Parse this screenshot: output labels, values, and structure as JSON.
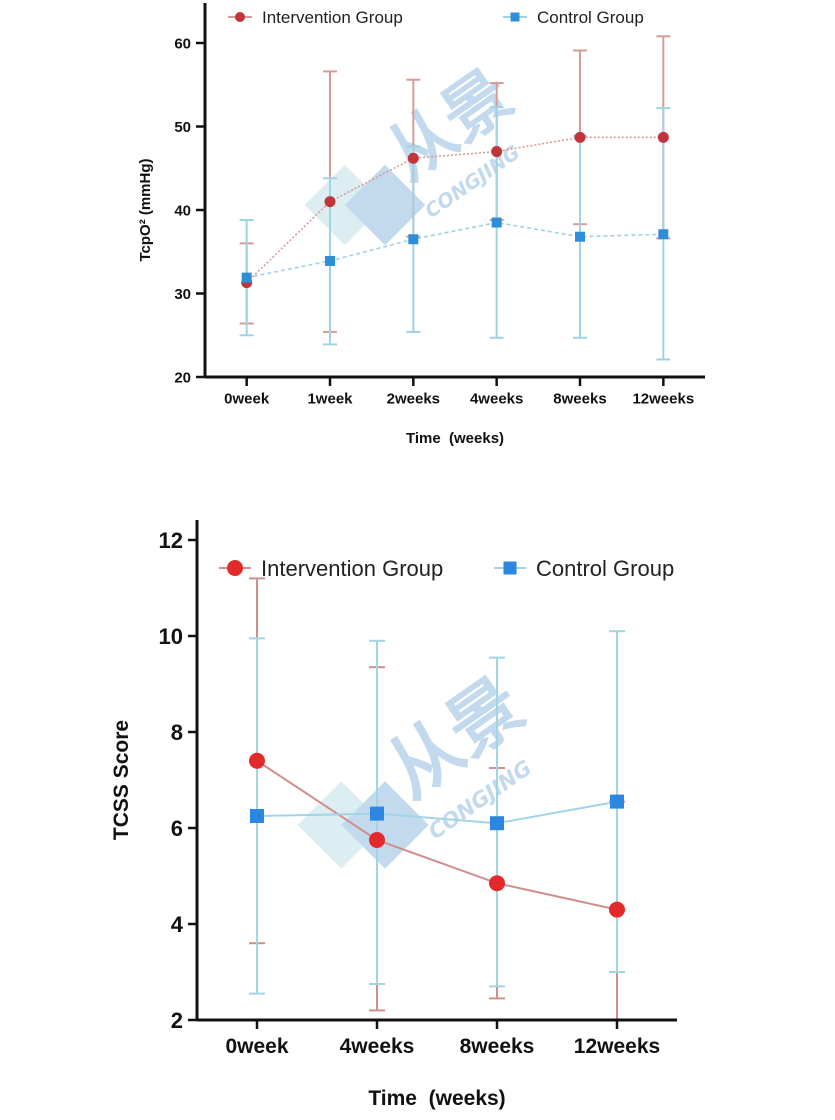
{
  "charts": [
    {
      "type": "line",
      "categories": [
        "0week",
        "1week",
        "2weeks",
        "4weeks",
        "8weeks",
        "12weeks"
      ],
      "xlabel": "Time  (weeks)",
      "ylabel": "TcpO² (mmHg)",
      "ylim": [
        20,
        60
      ],
      "yticks": [
        20,
        30,
        40,
        50,
        60
      ],
      "grid": false,
      "legend_position": "top",
      "colors": {
        "intervention": "#c0353a",
        "control": "#2e8fd8",
        "int_err": "#d89a98",
        "ctl_err": "#9fd3e3"
      },
      "series": [
        {
          "name": "Intervention Group",
          "marker": "circle",
          "values": [
            31.3,
            41.0,
            46.2,
            47.0,
            48.7,
            48.7
          ],
          "error_upper": [
            36.0,
            56.6,
            55.6,
            55.2,
            59.1,
            60.8
          ],
          "error_lower": [
            26.4,
            25.4,
            36.8,
            38.8,
            38.3,
            36.6
          ]
        },
        {
          "name": "Control Group",
          "marker": "square",
          "values": [
            31.9,
            33.9,
            36.5,
            38.5,
            36.8,
            37.1
          ],
          "error_upper": [
            38.8,
            43.8,
            47.6,
            52.3,
            48.9,
            52.2
          ],
          "error_lower": [
            25.0,
            23.9,
            25.4,
            24.7,
            24.7,
            22.1
          ]
        }
      ]
    },
    {
      "type": "line",
      "categories": [
        "0week",
        "4weeks",
        "8weeks",
        "12weeks"
      ],
      "xlabel": "Time  (weeks)",
      "ylabel": "TCSS Score",
      "ylim": [
        2,
        12
      ],
      "yticks": [
        2,
        4,
        6,
        8,
        10,
        12
      ],
      "grid": false,
      "legend_position": "top",
      "colors": {
        "intervention": "#e32a2a",
        "control": "#2d86e0",
        "int_err": "#cf8e8c",
        "ctl_err": "#9fd5e4"
      },
      "series": [
        {
          "name": "Intervention Group",
          "marker": "circle",
          "values": [
            7.4,
            5.75,
            4.85,
            4.3
          ],
          "error_upper": [
            11.2,
            9.35,
            7.25,
            6.55
          ],
          "error_lower": [
            3.6,
            2.2,
            2.45,
            2.0
          ]
        },
        {
          "name": "Control Group",
          "marker": "square",
          "values": [
            6.25,
            6.3,
            6.1,
            6.55
          ],
          "error_upper": [
            9.95,
            9.9,
            9.55,
            10.1
          ],
          "error_lower": [
            2.55,
            2.75,
            2.7,
            3.0
          ]
        }
      ]
    }
  ],
  "watermark": {
    "chars": "从景",
    "latin": "CONGJING",
    "color_blue": "#3d86c8",
    "color_teal": "#8fc9d2"
  }
}
